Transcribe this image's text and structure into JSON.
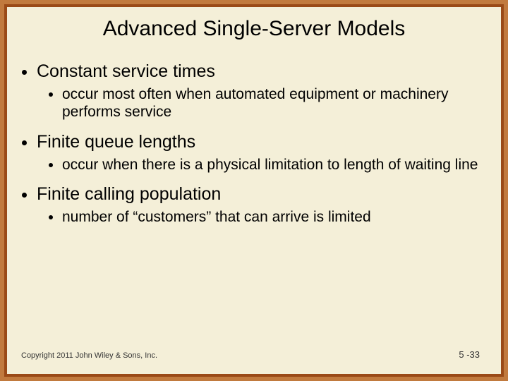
{
  "colors": {
    "border_outer": "#c17a3e",
    "border_inner": "#9a4a17",
    "background": "#f4efd8",
    "text": "#000000",
    "footer": "#333333"
  },
  "title": "Advanced Single-Server Models",
  "bullets": [
    {
      "text": "Constant service times",
      "children": [
        "occur most often when automated equipment or machinery performs service"
      ]
    },
    {
      "text": "Finite queue lengths",
      "children": [
        "occur when there is a physical limitation to length of waiting line"
      ]
    },
    {
      "text": "Finite calling population",
      "children": [
        "number of “customers” that can arrive is limited"
      ]
    }
  ],
  "footer": {
    "copyright": "Copyright 2011 John Wiley & Sons, Inc.",
    "page": "5 -33"
  }
}
